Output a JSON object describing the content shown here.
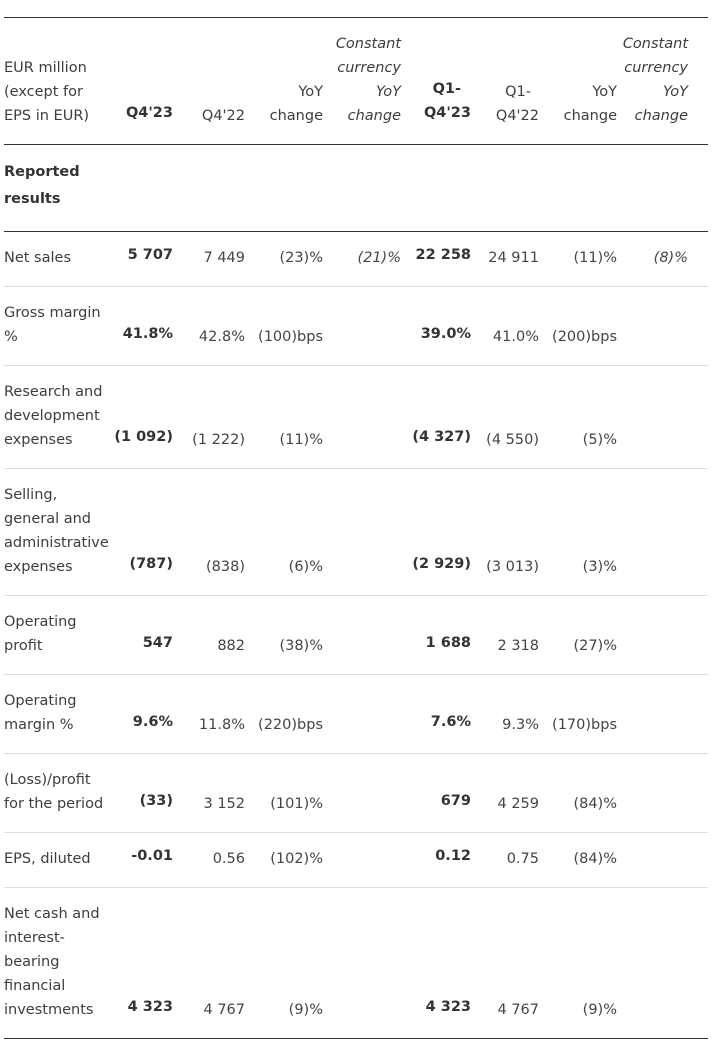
{
  "table": {
    "headers": {
      "label": [
        "EUR million",
        "(except for",
        "EPS in EUR)"
      ],
      "q4_23": "Q4'23",
      "q4_22": "Q4'22",
      "yoy": [
        "YoY",
        "change"
      ],
      "ccy": [
        "Constant",
        "currency",
        "YoY",
        "change"
      ],
      "fy_23": [
        "Q1-",
        "Q4'23"
      ],
      "fy_22": [
        "Q1-",
        "Q4'22"
      ],
      "fy_yoy": [
        "YoY",
        "change"
      ],
      "fy_ccy": [
        "Constant",
        "currency",
        "YoY",
        "change"
      ]
    },
    "section": [
      "Reported",
      "results"
    ],
    "rows": [
      {
        "label": [
          "Net sales"
        ],
        "q4_23": "5 707",
        "q4_22": "7 449",
        "yoy": "(23)%",
        "ccy": "(21)%",
        "fy_23": "22 258",
        "fy_22": "24 911",
        "fy_yoy": "(11)%",
        "fy_ccy": "(8)%"
      },
      {
        "label": [
          "Gross margin",
          "%"
        ],
        "q4_23": "41.8%",
        "q4_22": "42.8%",
        "yoy": "(100)bps",
        "ccy": "",
        "fy_23": "39.0%",
        "fy_22": "41.0%",
        "fy_yoy": "(200)bps",
        "fy_ccy": ""
      },
      {
        "label": [
          "Research and",
          "development",
          "expenses"
        ],
        "q4_23": "(1 092)",
        "q4_22": "(1 222)",
        "yoy": "(11)%",
        "ccy": "",
        "fy_23": "(4 327)",
        "fy_22": "(4 550)",
        "fy_yoy": "(5)%",
        "fy_ccy": ""
      },
      {
        "label": [
          "Selling,",
          "general and",
          "administrative",
          "expenses"
        ],
        "q4_23": "(787)",
        "q4_22": "(838)",
        "yoy": "(6)%",
        "ccy": "",
        "fy_23": "(2 929)",
        "fy_22": "(3 013)",
        "fy_yoy": "(3)%",
        "fy_ccy": ""
      },
      {
        "label": [
          "Operating",
          "profit"
        ],
        "q4_23": "547",
        "q4_22": "882",
        "yoy": "(38)%",
        "ccy": "",
        "fy_23": "1 688",
        "fy_22": "2 318",
        "fy_yoy": "(27)%",
        "fy_ccy": ""
      },
      {
        "label": [
          "Operating",
          "margin %"
        ],
        "q4_23": "9.6%",
        "q4_22": "11.8%",
        "yoy": "(220)bps",
        "ccy": "",
        "fy_23": "7.6%",
        "fy_22": "9.3%",
        "fy_yoy": "(170)bps",
        "fy_ccy": ""
      },
      {
        "label": [
          "(Loss)/profit",
          "for the period"
        ],
        "q4_23": "(33)",
        "q4_22": "3 152",
        "yoy": "(101)%",
        "ccy": "",
        "fy_23": "679",
        "fy_22": "4 259",
        "fy_yoy": "(84)%",
        "fy_ccy": ""
      },
      {
        "label": [
          "EPS, diluted"
        ],
        "q4_23": "-0.01",
        "q4_22": "0.56",
        "yoy": "(102)%",
        "ccy": "",
        "fy_23": "0.12",
        "fy_22": "0.75",
        "fy_yoy": "(84)%",
        "fy_ccy": ""
      },
      {
        "label": [
          "Net cash and",
          "interest-",
          "bearing",
          "financial",
          "investments"
        ],
        "q4_23": "4 323",
        "q4_22": "4 767",
        "yoy": "(9)%",
        "ccy": "",
        "fy_23": "4 323",
        "fy_22": "4 767",
        "fy_yoy": "(9)%",
        "fy_ccy": ""
      }
    ]
  }
}
